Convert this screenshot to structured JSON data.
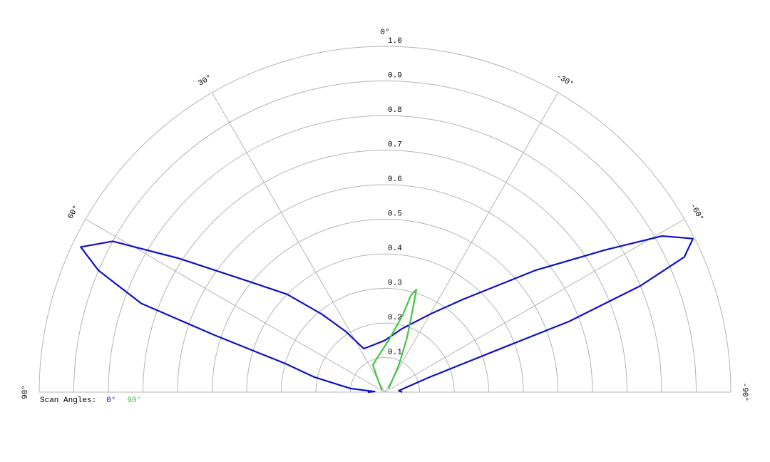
{
  "chart_data": {
    "type": "polar",
    "legend_title": "Scan Angles:",
    "rlim": [
      0,
      1
    ],
    "rticks": [
      0.1,
      0.2,
      0.3,
      0.4,
      0.5,
      0.6,
      0.7,
      0.8,
      0.9,
      {
        "value": 1,
        "label": "1.0"
      }
    ],
    "thetalim": [
      -90,
      90
    ],
    "thetaticks": [
      {
        "value": 90,
        "label": "90°"
      },
      {
        "value": 60,
        "label": "60°"
      },
      {
        "value": 30,
        "label": "30°"
      },
      {
        "value": 0,
        "label": "0°"
      },
      {
        "value": -30,
        "label": "-30°"
      },
      {
        "value": -60,
        "label": "-60°"
      },
      {
        "value": -90,
        "label": "-90°"
      }
    ],
    "grid": true,
    "series": [
      {
        "name": "0°",
        "color": "#1010c8",
        "theta": [
          -90,
          -84,
          -71.6,
          -69.4,
          -69,
          -67.4,
          -65.7,
          -63.5,
          -60.6,
          -57.2,
          -51,
          -40,
          -30,
          -15,
          0,
          15,
          26,
          33,
          39,
          45,
          51,
          57,
          61,
          64.5,
          67,
          70,
          71.5,
          74,
          78,
          84,
          87,
          90
        ],
        "values": [
          0.05,
          0.04,
          0.13,
          0.35,
          0.57,
          0.8,
          0.95,
          0.995,
          0.92,
          0.76,
          0.56,
          0.35,
          0.26,
          0.19,
          0.15,
          0.14,
          0.14,
          0.21,
          0.29,
          0.4,
          0.51,
          0.71,
          0.9,
          0.975,
          0.9,
          0.75,
          0.52,
          0.3,
          0.21,
          0.1,
          0.03,
          0.05
        ]
      },
      {
        "name": "90°",
        "color": "#44c444",
        "theta": [
          -45,
          -27,
          -22,
          -18,
          -17,
          -15,
          -13,
          -4,
          11,
          24,
          30,
          60
        ],
        "values": [
          0.015,
          0.09,
          0.17,
          0.27,
          0.31,
          0.29,
          0.23,
          0.15,
          0.105,
          0.086,
          0.04,
          0.01
        ]
      }
    ]
  }
}
